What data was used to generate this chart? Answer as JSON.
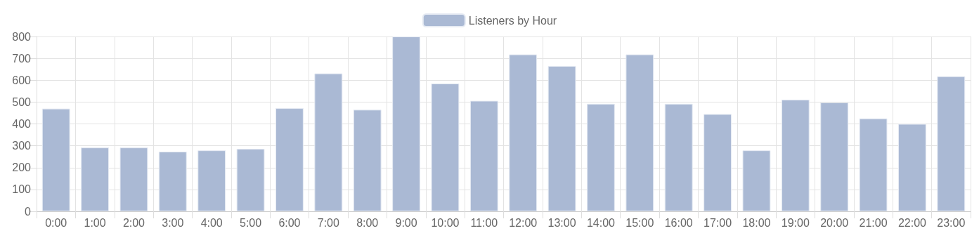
{
  "chart_data": {
    "type": "bar",
    "categories": [
      "0:00",
      "1:00",
      "2:00",
      "3:00",
      "4:00",
      "5:00",
      "6:00",
      "7:00",
      "8:00",
      "9:00",
      "10:00",
      "11:00",
      "12:00",
      "13:00",
      "14:00",
      "15:00",
      "16:00",
      "17:00",
      "18:00",
      "19:00",
      "20:00",
      "21:00",
      "22:00",
      "23:00"
    ],
    "series": [
      {
        "name": "Listeners by Hour",
        "color": "#aab9d4",
        "values": [
          470,
          292,
          292,
          273,
          279,
          286,
          472,
          631,
          465,
          800,
          585,
          506,
          718,
          665,
          492,
          718,
          492,
          445,
          279,
          511,
          498,
          425,
          400,
          618
        ]
      }
    ],
    "ylim": [
      0,
      800
    ],
    "yticks": [
      0,
      100,
      200,
      300,
      400,
      500,
      600,
      700,
      800
    ],
    "grid": true,
    "legend": "top"
  }
}
